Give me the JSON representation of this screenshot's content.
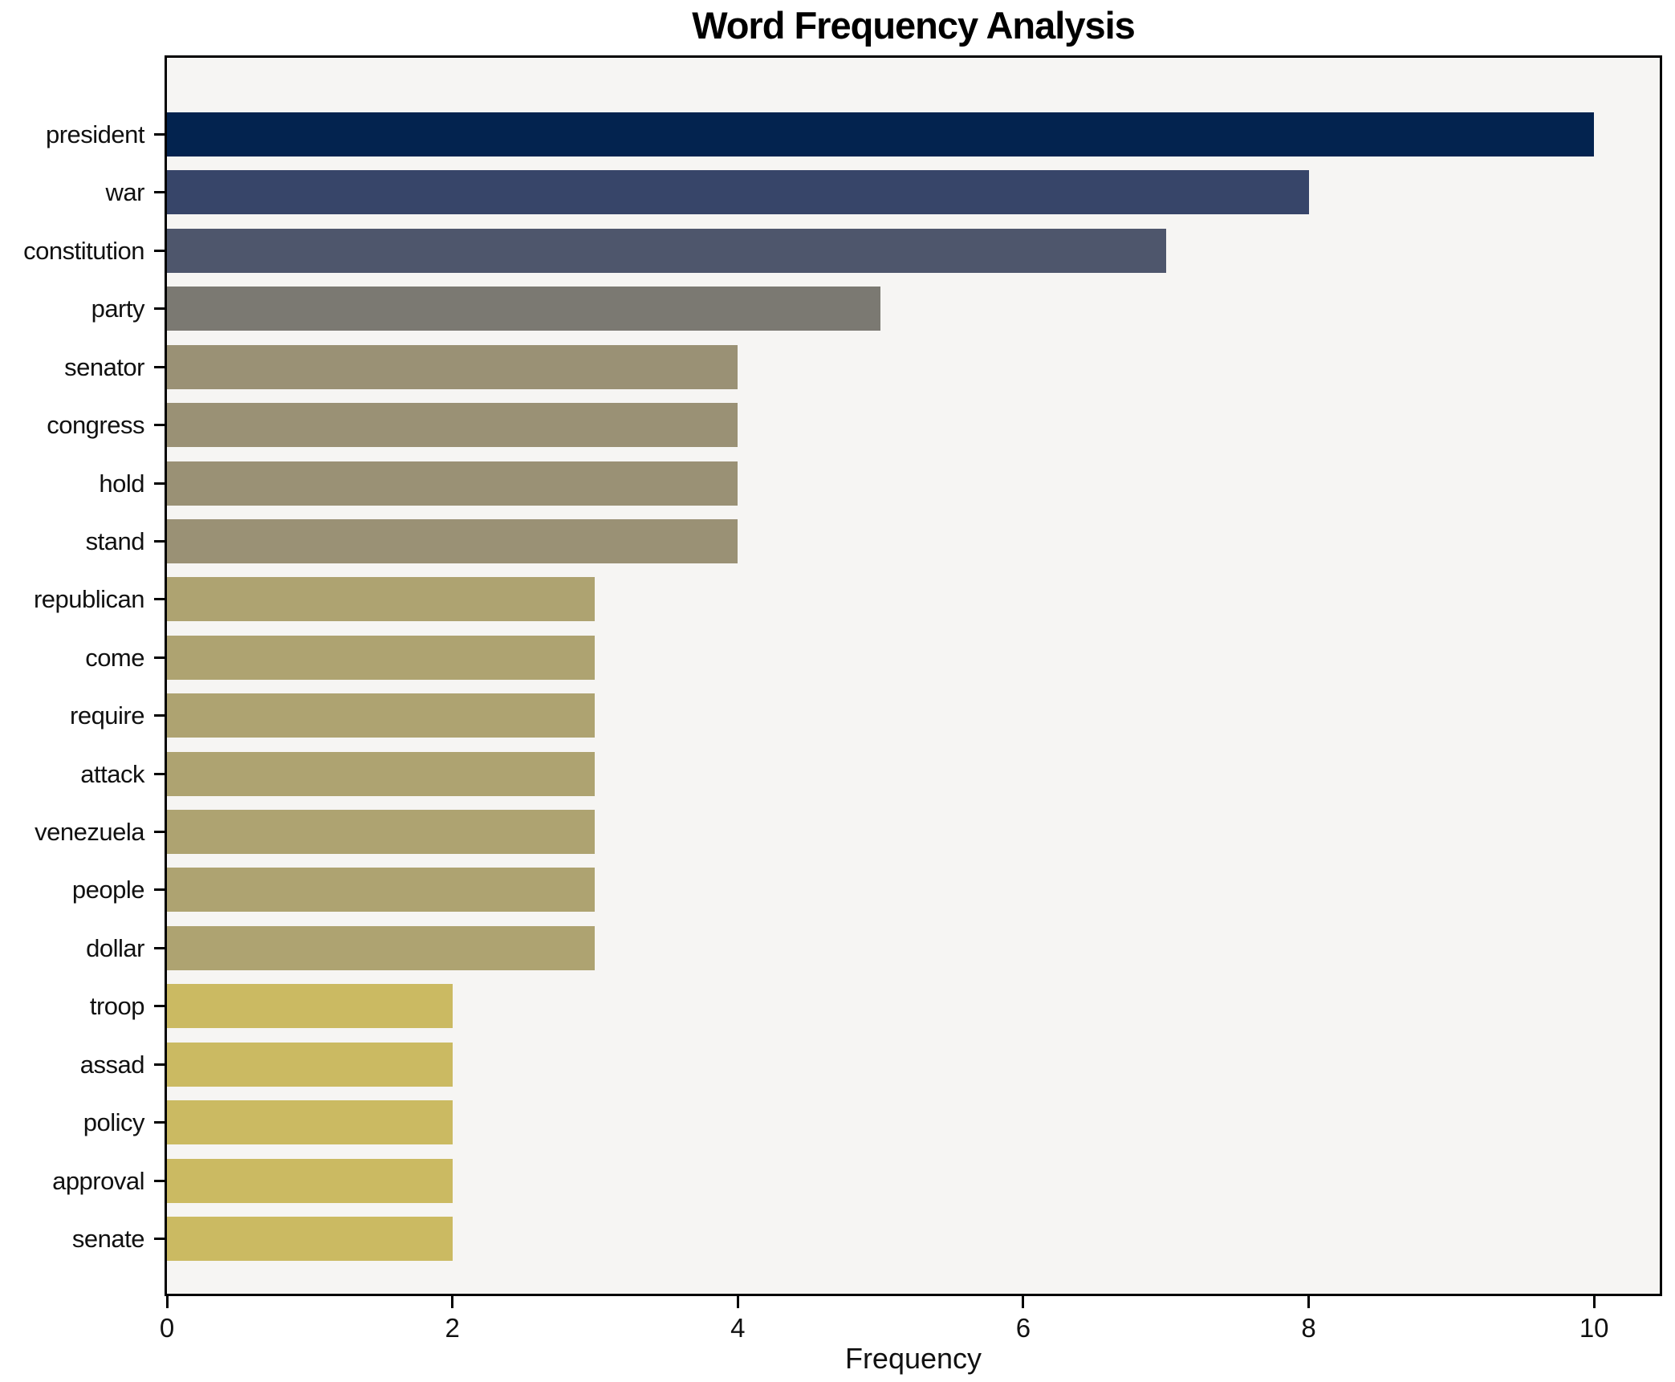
{
  "figure": {
    "background": "#ffffff",
    "plot_background": "#f6f5f3",
    "frame_color": "#000000",
    "text_color": "#111111"
  },
  "chart_data": {
    "type": "bar",
    "orientation": "horizontal",
    "title": "Word Frequency Analysis",
    "xlabel": "Frequency",
    "ylabel": "",
    "categories": [
      "president",
      "war",
      "constitution",
      "party",
      "senator",
      "congress",
      "hold",
      "stand",
      "republican",
      "come",
      "require",
      "attack",
      "venezuela",
      "people",
      "dollar",
      "troop",
      "assad",
      "policy",
      "approval",
      "senate"
    ],
    "values": [
      10,
      8,
      7,
      5,
      4,
      4,
      4,
      4,
      3,
      3,
      3,
      3,
      3,
      3,
      3,
      2,
      2,
      2,
      2,
      2
    ],
    "bar_colors": [
      "#03234f",
      "#374569",
      "#4e566c",
      "#7b7972",
      "#9a9175",
      "#9a9175",
      "#9a9175",
      "#9a9175",
      "#aea371",
      "#aea371",
      "#aea371",
      "#aea371",
      "#aea371",
      "#aea371",
      "#aea371",
      "#cbba62",
      "#cbba62",
      "#cbba62",
      "#cbba62",
      "#cbba62"
    ],
    "xlim": [
      0,
      10.46
    ],
    "xticks": [
      0,
      2,
      4,
      6,
      8,
      10
    ],
    "grid": false,
    "legend": "none"
  }
}
